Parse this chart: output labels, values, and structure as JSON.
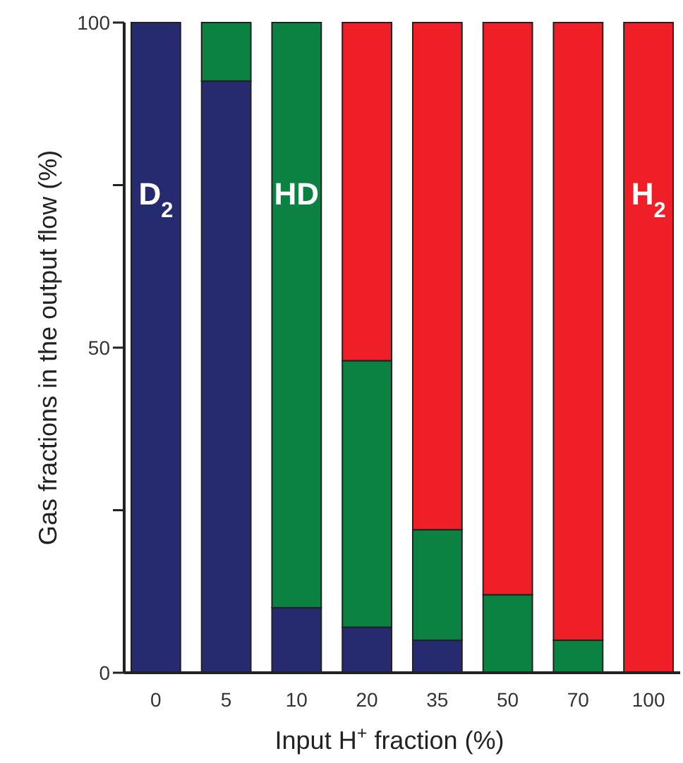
{
  "chart_data": {
    "type": "bar",
    "stacked": true,
    "xlabel": "Input H$^{+}$ fraction  (%)",
    "ylabel": "Gas fractions in the output flow (%)",
    "categories": [
      "0",
      "5",
      "10",
      "20",
      "35",
      "50",
      "70",
      "100"
    ],
    "series": [
      {
        "name": "D$_{2}$",
        "color": "#262a6e",
        "values": [
          100,
          91,
          10,
          7,
          5,
          0,
          0,
          0
        ]
      },
      {
        "name": "HD",
        "color": "#0b8241",
        "values": [
          0,
          9,
          90,
          41,
          17,
          12,
          5,
          0
        ]
      },
      {
        "name": "H$_{2}$",
        "color": "#ee1f26",
        "values": [
          0,
          0,
          0,
          52,
          78,
          88,
          95,
          100
        ]
      }
    ],
    "ylim": [
      0,
      100
    ],
    "yticks": [
      0,
      {
        "value": 25,
        "label": null
      },
      50,
      {
        "value": 75,
        "label": null
      },
      100
    ],
    "grid": false
  }
}
